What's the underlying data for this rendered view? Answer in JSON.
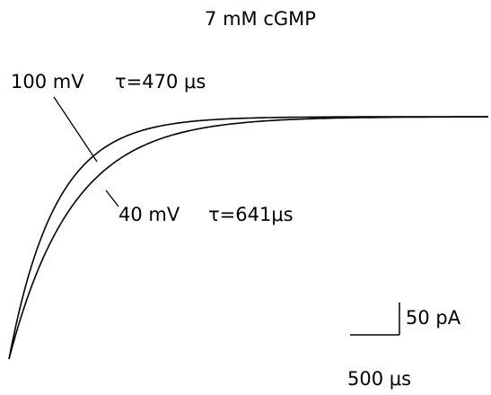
{
  "chart_data": {
    "type": "exponential-traces",
    "title": "7 mM cGMP",
    "traces": [
      {
        "name": "100 mV",
        "tau_label": "τ=470 μs",
        "tau": 470,
        "amplitude": 375
      },
      {
        "name": "40 mV",
        "tau_label": "τ=641μs",
        "tau": 641,
        "amplitude": 375
      }
    ],
    "scale_bar": {
      "current": 50,
      "current_label": "50 pA",
      "time": 500,
      "time_label": "500 μs"
    }
  }
}
